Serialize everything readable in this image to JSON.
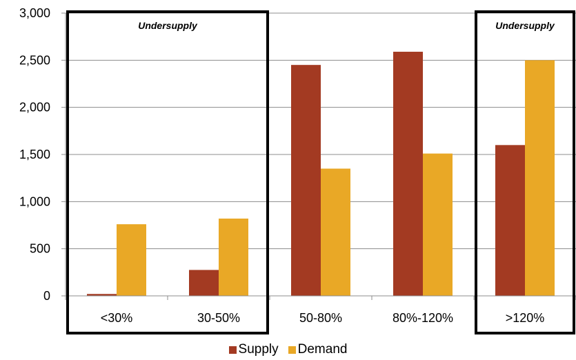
{
  "chart_data": {
    "type": "bar",
    "categories": [
      "<30%",
      "30-50%",
      "50-80%",
      "80%-120%",
      ">120%"
    ],
    "series": [
      {
        "name": "Supply",
        "values": [
          20,
          275,
          2450,
          2590,
          1600
        ],
        "color": "#a33a22"
      },
      {
        "name": "Demand",
        "values": [
          760,
          820,
          1350,
          1510,
          2500
        ],
        "color": "#e9a826"
      }
    ],
    "ylim": [
      0,
      3000
    ],
    "yticks": [
      0,
      500,
      1000,
      1500,
      2000,
      2500,
      3000
    ],
    "ytick_labels": [
      "0",
      "500",
      "1,000",
      "1,500",
      "2,000",
      "2,500",
      "3,000"
    ],
    "grid": true,
    "legend_position": "bottom",
    "annotations": [
      {
        "label": "Undersupply",
        "categories": [
          "<30%",
          "30-50%"
        ]
      },
      {
        "label": "Undersupply",
        "categories": [
          ">120%"
        ]
      }
    ],
    "title": "",
    "xlabel": "",
    "ylabel": ""
  }
}
